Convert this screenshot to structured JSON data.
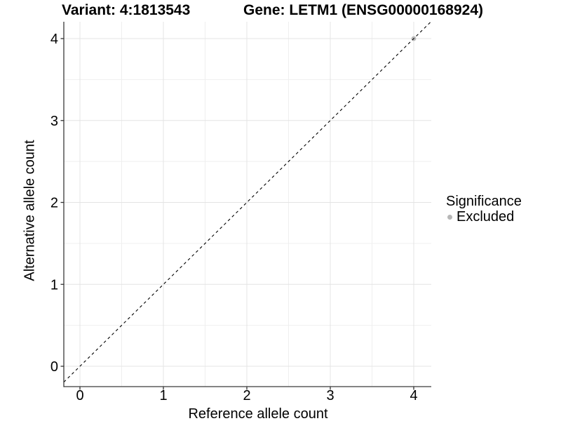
{
  "chart_data": {
    "type": "scatter",
    "title_left": "Variant: 4:1813543",
    "title_right": "Gene: LETM1 (ENSG00000168924)",
    "xlabel": "Reference allele count",
    "ylabel": "Alternative allele count",
    "xticks": [
      0,
      1,
      2,
      3,
      4
    ],
    "yticks": [
      0,
      1,
      2,
      3,
      4
    ],
    "xlim": [
      -0.2,
      4.21
    ],
    "ylim": [
      -0.25,
      4.21
    ],
    "grid": "major-and-minor, minor at 0.5 steps",
    "legend_position": "right",
    "identity_line": {
      "slope": 1,
      "intercept": 0,
      "style": "dashed",
      "color": "#000000"
    },
    "series": [
      {
        "name": "Excluded",
        "color": "#b7b7b7",
        "points": [
          {
            "x": 4,
            "y": 4
          }
        ]
      }
    ],
    "legend": {
      "title": "Significance",
      "items": [
        {
          "label": "Excluded",
          "color": "#b7b7b7"
        }
      ]
    },
    "colors": {
      "axis_line": "#3a3a3a",
      "tick_mark": "#333333",
      "tick_label": "#000000",
      "grid_major": "#e4e4e4",
      "grid_minor": "#efefef",
      "background": "#ffffff"
    }
  }
}
